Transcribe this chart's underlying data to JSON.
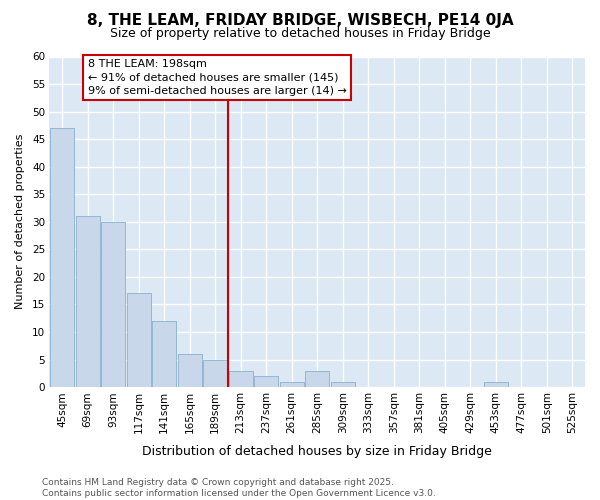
{
  "title": "8, THE LEAM, FRIDAY BRIDGE, WISBECH, PE14 0JA",
  "subtitle": "Size of property relative to detached houses in Friday Bridge",
  "xlabel": "Distribution of detached houses by size in Friday Bridge",
  "ylabel": "Number of detached properties",
  "categories": [
    "45sqm",
    "69sqm",
    "93sqm",
    "117sqm",
    "141sqm",
    "165sqm",
    "189sqm",
    "213sqm",
    "237sqm",
    "261sqm",
    "285sqm",
    "309sqm",
    "333sqm",
    "357sqm",
    "381sqm",
    "405sqm",
    "429sqm",
    "453sqm",
    "477sqm",
    "501sqm",
    "525sqm"
  ],
  "values": [
    47,
    31,
    30,
    17,
    12,
    6,
    5,
    3,
    2,
    1,
    3,
    1,
    0,
    0,
    0,
    0,
    0,
    1,
    0,
    0,
    0
  ],
  "bar_color": "#c8d8ea",
  "bar_edge_color": "#8ab0cc",
  "plot_bg_color": "#dce8f4",
  "figure_bg_color": "#ffffff",
  "grid_color": "#ffffff",
  "vline_x_index": 7,
  "vline_color": "#cc0000",
  "annotation_text": "8 THE LEAM: 198sqm\n← 91% of detached houses are smaller (145)\n9% of semi-detached houses are larger (14) →",
  "annotation_box_facecolor": "#ffffff",
  "annotation_box_edgecolor": "#cc0000",
  "footer": "Contains HM Land Registry data © Crown copyright and database right 2025.\nContains public sector information licensed under the Open Government Licence v3.0.",
  "footer_color": "#555555",
  "ylim": [
    0,
    60
  ],
  "yticks": [
    0,
    5,
    10,
    15,
    20,
    25,
    30,
    35,
    40,
    45,
    50,
    55,
    60
  ],
  "title_fontsize": 11,
  "subtitle_fontsize": 9,
  "xlabel_fontsize": 9,
  "ylabel_fontsize": 8,
  "tick_fontsize": 7.5,
  "annotation_fontsize": 8,
  "footer_fontsize": 6.5
}
